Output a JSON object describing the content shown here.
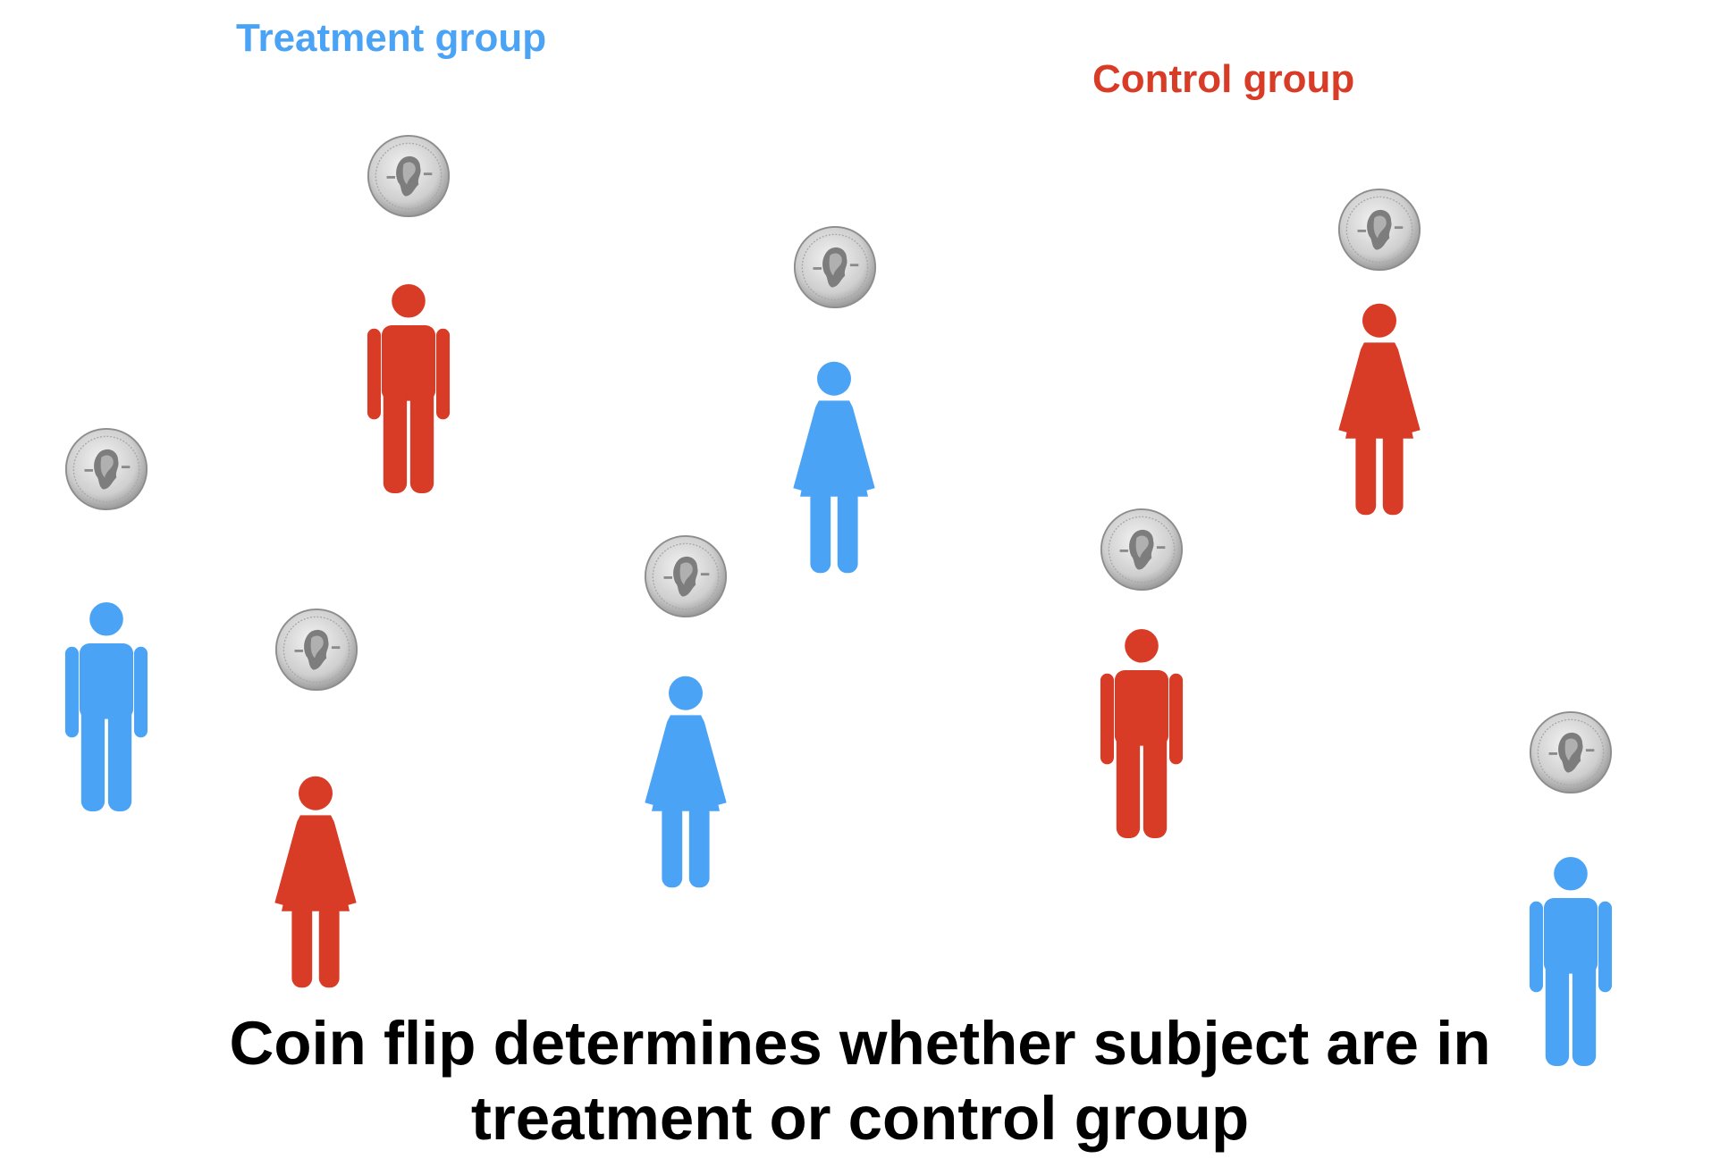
{
  "labels": {
    "treatment": "Treatment group",
    "control": "Control group"
  },
  "caption": {
    "line1": "Coin flip determines whether subject are in",
    "line2": "treatment or control group"
  },
  "colors": {
    "treatment": "#4ba3f6",
    "control": "#d83b26",
    "caption": "#000000",
    "coin": "#c9c9c9"
  },
  "icons": {
    "man": "man-icon",
    "woman": "woman-icon",
    "coin": "coin-icon"
  },
  "subjects": [
    {
      "id": "subject-1",
      "icon": "man",
      "group": "treatment"
    },
    {
      "id": "subject-2",
      "icon": "man",
      "group": "control"
    },
    {
      "id": "subject-3",
      "icon": "woman",
      "group": "control"
    },
    {
      "id": "subject-4",
      "icon": "woman",
      "group": "treatment"
    },
    {
      "id": "subject-5",
      "icon": "woman",
      "group": "treatment"
    },
    {
      "id": "subject-6",
      "icon": "man",
      "group": "control"
    },
    {
      "id": "subject-7",
      "icon": "woman",
      "group": "control"
    },
    {
      "id": "subject-8",
      "icon": "man",
      "group": "treatment"
    }
  ]
}
